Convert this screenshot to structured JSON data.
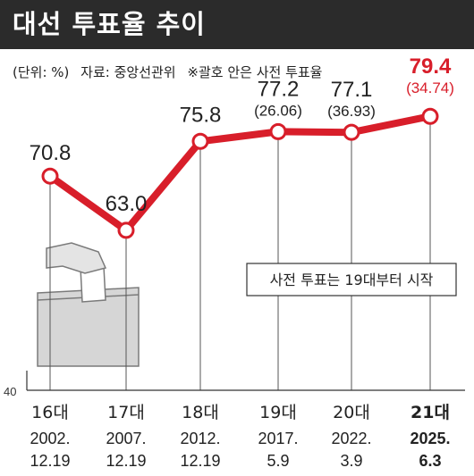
{
  "header": {
    "title": "대선 투표율 추이",
    "unit_note": "(단위: %)",
    "source_note": "자료: 중앙선관위",
    "paren_note": "※괄호 안은 사전 투표율"
  },
  "colors": {
    "line": "#d81e2a",
    "highlight": "#d81e2a",
    "title_bg": "#2b2b2b",
    "grid": "#555555"
  },
  "chart_data": {
    "type": "line",
    "categories": [
      "16대",
      "17대",
      "18대",
      "19대",
      "20대",
      "21대"
    ],
    "dates": [
      "2002.\n12.19",
      "2007.\n12.19",
      "2012.\n12.19",
      "2017.\n5.9",
      "2022.\n3.9",
      "2025.\n6.3"
    ],
    "values": [
      70.8,
      63.0,
      75.8,
      77.2,
      77.1,
      79.4
    ],
    "early_voting": [
      null,
      null,
      null,
      26.06,
      36.93,
      34.74
    ],
    "value_labels": [
      "70.8",
      "63.0",
      "75.8",
      "77.2",
      "77.1",
      "79.4"
    ],
    "early_labels": [
      "",
      "",
      "",
      "(26.06)",
      "(36.93)",
      "(34.74)"
    ],
    "highlight_index": 5,
    "y_tick_label": "40",
    "ylim": [
      40,
      82
    ],
    "annotation": "사전 투표는 19대부터 시작"
  }
}
